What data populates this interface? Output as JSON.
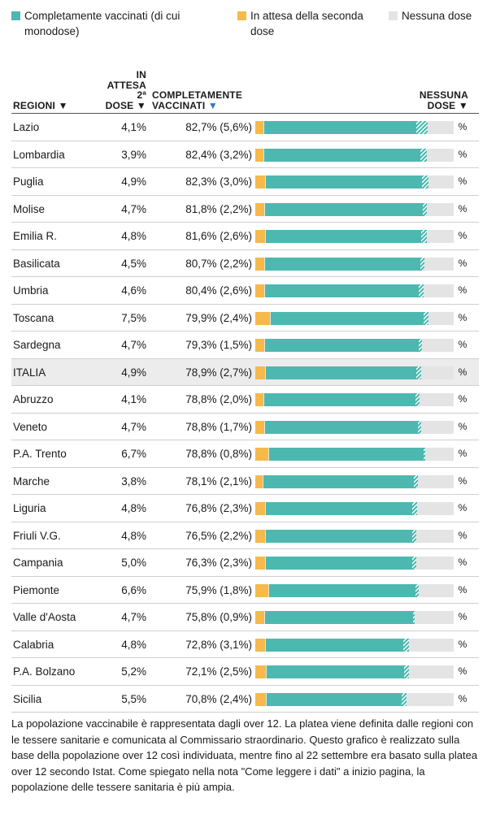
{
  "legend": [
    {
      "label": "Completamente vaccinati (di cui monodose)",
      "color": "#4db8b0"
    },
    {
      "label": "In attesa della seconda dose",
      "color": "#f6b94a"
    },
    {
      "label": "Nessuna dose",
      "color": "#e4e4e4"
    }
  ],
  "header": {
    "region": "REGIONI ▼",
    "attesa_l1": "IN",
    "attesa_l2": "ATTESA",
    "attesa_l3": "2ª",
    "attesa_l4": "DOSE ▼",
    "comp_l1": "COMPLETAMENTE",
    "comp_l2": "VACCINATI",
    "comp_arrow": "▼",
    "none_l1": "NESSUNA",
    "none_l2": "DOSE ▼"
  },
  "chart_data": {
    "type": "bar",
    "stacked": true,
    "scale_max": 100,
    "categories": [
      "Lazio",
      "Lombardia",
      "Puglia",
      "Molise",
      "Emilia R.",
      "Basilicata",
      "Umbria",
      "Toscana",
      "Sardegna",
      "ITALIA",
      "Abruzzo",
      "Veneto",
      "P.A. Trento",
      "Marche",
      "Liguria",
      "Friuli V.G.",
      "Campania",
      "Piemonte",
      "Valle d'Aosta",
      "Calabria",
      "P.A. Bolzano",
      "Sicilia"
    ],
    "rows": [
      {
        "region": "Lazio",
        "attesa": "4,1%",
        "completi": "82,7% (5,6%)",
        "attesa_value": 4.1,
        "completi_value": 82.7,
        "monodose_value": 5.6,
        "none_label": "%"
      },
      {
        "region": "Lombardia",
        "attesa": "3,9%",
        "completi": "82,4% (3,2%)",
        "attesa_value": 3.9,
        "completi_value": 82.4,
        "monodose_value": 3.2,
        "none_label": "%"
      },
      {
        "region": "Puglia",
        "attesa": "4,9%",
        "completi": "82,3% (3,0%)",
        "attesa_value": 4.9,
        "completi_value": 82.3,
        "monodose_value": 3.0,
        "none_label": "%"
      },
      {
        "region": "Molise",
        "attesa": "4,7%",
        "completi": "81,8% (2,2%)",
        "attesa_value": 4.7,
        "completi_value": 81.8,
        "monodose_value": 2.2,
        "none_label": "%"
      },
      {
        "region": "Emilia R.",
        "attesa": "4,8%",
        "completi": "81,6% (2,6%)",
        "attesa_value": 4.8,
        "completi_value": 81.6,
        "monodose_value": 2.6,
        "none_label": "%"
      },
      {
        "region": "Basilicata",
        "attesa": "4,5%",
        "completi": "80,7% (2,2%)",
        "attesa_value": 4.5,
        "completi_value": 80.7,
        "monodose_value": 2.2,
        "none_label": "%"
      },
      {
        "region": "Umbria",
        "attesa": "4,6%",
        "completi": "80,4% (2,6%)",
        "attesa_value": 4.6,
        "completi_value": 80.4,
        "monodose_value": 2.6,
        "none_label": "%"
      },
      {
        "region": "Toscana",
        "attesa": "7,5%",
        "completi": "79,9% (2,4%)",
        "attesa_value": 7.5,
        "completi_value": 79.9,
        "monodose_value": 2.4,
        "none_label": "%"
      },
      {
        "region": "Sardegna",
        "attesa": "4,7%",
        "completi": "79,3% (1,5%)",
        "attesa_value": 4.7,
        "completi_value": 79.3,
        "monodose_value": 1.5,
        "none_label": "%"
      },
      {
        "region": "ITALIA",
        "attesa": "4,9%",
        "completi": "78,9% (2,7%)",
        "attesa_value": 4.9,
        "completi_value": 78.9,
        "monodose_value": 2.7,
        "none_label": "%",
        "highlight": true
      },
      {
        "region": "Abruzzo",
        "attesa": "4,1%",
        "completi": "78,8% (2,0%)",
        "attesa_value": 4.1,
        "completi_value": 78.8,
        "monodose_value": 2.0,
        "none_label": "%"
      },
      {
        "region": "Veneto",
        "attesa": "4,7%",
        "completi": "78,8% (1,7%)",
        "attesa_value": 4.7,
        "completi_value": 78.8,
        "monodose_value": 1.7,
        "none_label": "%"
      },
      {
        "region": "P.A. Trento",
        "attesa": "6,7%",
        "completi": "78,8% (0,8%)",
        "attesa_value": 6.7,
        "completi_value": 78.8,
        "monodose_value": 0.8,
        "none_label": "%"
      },
      {
        "region": "Marche",
        "attesa": "3,8%",
        "completi": "78,1% (2,1%)",
        "attesa_value": 3.8,
        "completi_value": 78.1,
        "monodose_value": 2.1,
        "none_label": "%"
      },
      {
        "region": "Liguria",
        "attesa": "4,8%",
        "completi": "76,8% (2,3%)",
        "attesa_value": 4.8,
        "completi_value": 76.8,
        "monodose_value": 2.3,
        "none_label": "%"
      },
      {
        "region": "Friuli V.G.",
        "attesa": "4,8%",
        "completi": "76,5% (2,2%)",
        "attesa_value": 4.8,
        "completi_value": 76.5,
        "monodose_value": 2.2,
        "none_label": "%"
      },
      {
        "region": "Campania",
        "attesa": "5,0%",
        "completi": "76,3% (2,3%)",
        "attesa_value": 5.0,
        "completi_value": 76.3,
        "monodose_value": 2.3,
        "none_label": "%"
      },
      {
        "region": "Piemonte",
        "attesa": "6,6%",
        "completi": "75,9% (1,8%)",
        "attesa_value": 6.6,
        "completi_value": 75.9,
        "monodose_value": 1.8,
        "none_label": "%"
      },
      {
        "region": "Valle d'Aosta",
        "attesa": "4,7%",
        "completi": "75,8% (0,9%)",
        "attesa_value": 4.7,
        "completi_value": 75.8,
        "monodose_value": 0.9,
        "none_label": "%"
      },
      {
        "region": "Calabria",
        "attesa": "4,8%",
        "completi": "72,8% (3,1%)",
        "attesa_value": 4.8,
        "completi_value": 72.8,
        "monodose_value": 3.1,
        "none_label": "%"
      },
      {
        "region": "P.A. Bolzano",
        "attesa": "5,2%",
        "completi": "72,1% (2,5%)",
        "attesa_value": 5.2,
        "completi_value": 72.1,
        "monodose_value": 2.5,
        "none_label": "%"
      },
      {
        "region": "Sicilia",
        "attesa": "5,5%",
        "completi": "70,8% (2,4%)",
        "attesa_value": 5.5,
        "completi_value": 70.8,
        "monodose_value": 2.4,
        "none_label": "%"
      }
    ]
  },
  "footnote": "La popolazione vaccinabile è rappresentata dagli over 12. La platea viene definita dalle regioni con le tessere sanitarie e comunicata al Commissario straordinario. Questo grafico è realizzato sulla base della popolazione over 12 così individuata, mentre fino al 22 settembre era basato sulla platea over 12 secondo Istat. Come spiegato nella nota \"Come leggere i dati\" a inizio pagina, la popolazione delle tessere sanitaria è più ampia."
}
